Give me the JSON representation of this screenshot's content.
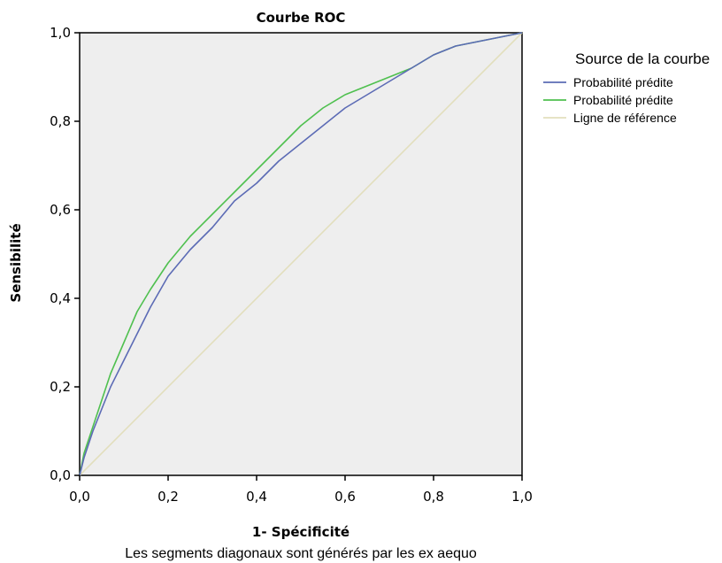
{
  "chart_data": {
    "type": "line",
    "title": "Courbe ROC",
    "xlabel": "1- Spécificité",
    "ylabel": "Sensibilité",
    "footnote": "Les segments diagonaux sont générés par les  ex aequo",
    "xlim": [
      0,
      1
    ],
    "ylim": [
      0,
      1
    ],
    "xticks": [
      "0,0",
      "0,2",
      "0,4",
      "0,6",
      "0,8",
      "1,0"
    ],
    "yticks": [
      "0,0",
      "0,2",
      "0,4",
      "0,6",
      "0,8",
      "1,0"
    ],
    "grid": false,
    "plot_background": "#eeeeee",
    "legend": {
      "title": "Source de la courbe",
      "placement": "right"
    },
    "series": [
      {
        "name": "Probabilité prédite",
        "color": "#5c6bb5",
        "x": [
          0,
          0.01,
          0.02,
          0.03,
          0.05,
          0.07,
          0.1,
          0.13,
          0.16,
          0.2,
          0.25,
          0.3,
          0.35,
          0.4,
          0.45,
          0.5,
          0.55,
          0.6,
          0.65,
          0.7,
          0.75,
          0.8,
          0.85,
          0.9,
          0.95,
          1
        ],
        "y": [
          0,
          0.04,
          0.07,
          0.1,
          0.15,
          0.2,
          0.26,
          0.32,
          0.38,
          0.45,
          0.51,
          0.56,
          0.62,
          0.66,
          0.71,
          0.75,
          0.79,
          0.83,
          0.86,
          0.89,
          0.92,
          0.95,
          0.97,
          0.98,
          0.99,
          1
        ]
      },
      {
        "name": "Probabilité prédite",
        "color": "#4fc04f",
        "x": [
          0,
          0.01,
          0.02,
          0.03,
          0.05,
          0.07,
          0.1,
          0.13,
          0.16,
          0.2,
          0.25,
          0.3,
          0.35,
          0.4,
          0.45,
          0.5,
          0.55,
          0.6,
          0.65,
          0.7,
          0.75,
          0.8,
          0.85,
          0.9,
          0.95,
          1
        ],
        "y": [
          0,
          0.05,
          0.08,
          0.11,
          0.17,
          0.23,
          0.3,
          0.37,
          0.42,
          0.48,
          0.54,
          0.59,
          0.64,
          0.69,
          0.74,
          0.79,
          0.83,
          0.86,
          0.88,
          0.9,
          0.92,
          0.95,
          0.97,
          0.98,
          0.99,
          1
        ]
      },
      {
        "name": "Ligne de référence",
        "color": "#e2dfbd",
        "x": [
          0,
          1
        ],
        "y": [
          0,
          1
        ]
      }
    ]
  }
}
